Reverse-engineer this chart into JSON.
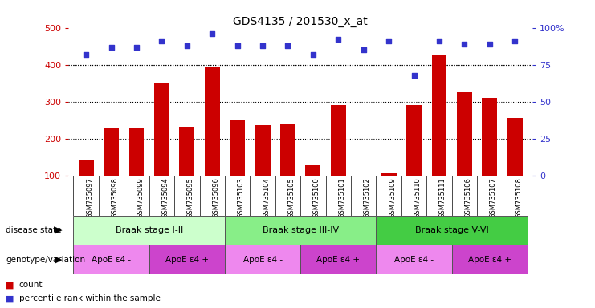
{
  "title": "GDS4135 / 201530_x_at",
  "samples": [
    "GSM735097",
    "GSM735098",
    "GSM735099",
    "GSM735094",
    "GSM735095",
    "GSM735096",
    "GSM735103",
    "GSM735104",
    "GSM735105",
    "GSM735100",
    "GSM735101",
    "GSM735102",
    "GSM735109",
    "GSM735110",
    "GSM735111",
    "GSM735106",
    "GSM735107",
    "GSM735108"
  ],
  "counts": [
    140,
    227,
    227,
    350,
    232,
    393,
    251,
    237,
    240,
    127,
    291,
    100,
    107,
    291,
    425,
    325,
    310,
    257
  ],
  "percentiles": [
    82,
    87,
    87,
    91,
    88,
    96,
    88,
    88,
    88,
    82,
    92,
    85,
    91,
    68,
    91,
    89,
    89,
    91
  ],
  "bar_color": "#cc0000",
  "dot_color": "#3333cc",
  "ylim_left": [
    100,
    500
  ],
  "ylim_right": [
    0,
    100
  ],
  "yticks_left": [
    100,
    200,
    300,
    400,
    500
  ],
  "yticks_right": [
    0,
    25,
    50,
    75,
    100
  ],
  "ytick_right_labels": [
    "0",
    "25",
    "50",
    "75",
    "100%"
  ],
  "disease_stages": [
    {
      "label": "Braak stage I-II",
      "start": 0,
      "end": 6,
      "color": "#ccffcc"
    },
    {
      "label": "Braak stage III-IV",
      "start": 6,
      "end": 12,
      "color": "#88ee88"
    },
    {
      "label": "Braak stage V-VI",
      "start": 12,
      "end": 18,
      "color": "#44cc44"
    }
  ],
  "genotype_groups": [
    {
      "label": "ApoE ε4 -",
      "start": 0,
      "end": 3,
      "color": "#ee88ee"
    },
    {
      "label": "ApoE ε4 +",
      "start": 3,
      "end": 6,
      "color": "#cc44cc"
    },
    {
      "label": "ApoE ε4 -",
      "start": 6,
      "end": 9,
      "color": "#ee88ee"
    },
    {
      "label": "ApoE ε4 +",
      "start": 9,
      "end": 12,
      "color": "#cc44cc"
    },
    {
      "label": "ApoE ε4 -",
      "start": 12,
      "end": 15,
      "color": "#ee88ee"
    },
    {
      "label": "ApoE ε4 +",
      "start": 15,
      "end": 18,
      "color": "#cc44cc"
    }
  ],
  "bg_color": "#ffffff",
  "grid_color": "#000000"
}
